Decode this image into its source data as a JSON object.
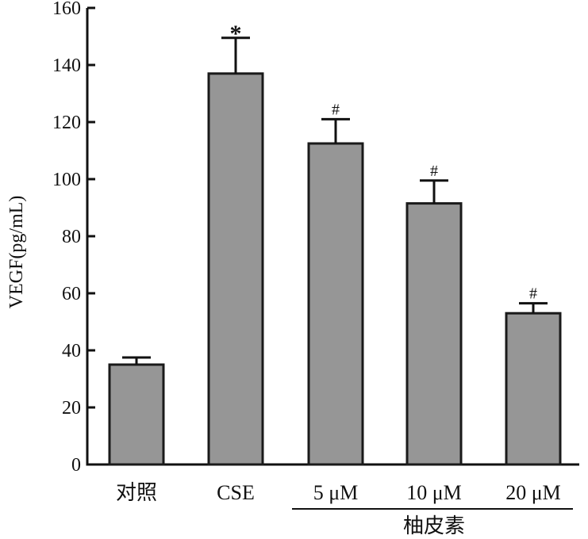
{
  "chart_data": {
    "type": "bar",
    "ylabel": "VEGF(pg/mL)",
    "ylim": [
      0,
      160
    ],
    "yticks": [
      0,
      20,
      40,
      60,
      80,
      100,
      120,
      140,
      160
    ],
    "categories": [
      "对照",
      "CSE",
      "5 μM",
      "10 μM",
      "20 μM"
    ],
    "values": [
      35,
      137,
      112.5,
      91.5,
      53
    ],
    "errors": [
      2.5,
      12.5,
      8.5,
      8,
      3.5
    ],
    "significance": [
      "",
      "*",
      "#",
      "#",
      "#"
    ],
    "group_label": "柚皮素",
    "group_categories": [
      "5 μM",
      "10 μM",
      "20 μM"
    ],
    "bar_color": "#969696",
    "edge_color": "#1a1a1a"
  }
}
